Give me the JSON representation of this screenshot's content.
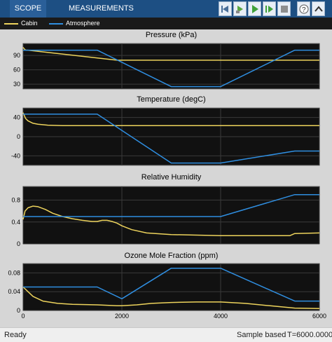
{
  "toolstrip": {
    "tabs": [
      {
        "label": "SCOPE"
      },
      {
        "label": "MEASUREMENTS"
      }
    ],
    "buttons": [
      "back-icon",
      "step-icon",
      "run-icon",
      "step-forward-icon",
      "stop-icon",
      "help-icon",
      "collapse-icon"
    ]
  },
  "legend": {
    "items": [
      {
        "label": "Cabin",
        "color": "#edd35c"
      },
      {
        "label": "Atmosphere",
        "color": "#2f8ee0"
      }
    ]
  },
  "status": {
    "left": "Ready",
    "mode": "Sample based",
    "time": "T=6000.0000"
  },
  "chart_data": [
    {
      "type": "line",
      "title": "Pressure (kPa)",
      "xlim": [
        0,
        6000
      ],
      "ylim": [
        20,
        115
      ],
      "yticks": [
        30,
        60,
        90
      ],
      "xtick_labels": [],
      "grid": true,
      "series": [
        {
          "name": "Cabin",
          "color": "#edd35c",
          "x": [
            0,
            20,
            40,
            60,
            100,
            1900,
            2000,
            6000
          ],
          "y": [
            107,
            104,
            102,
            101,
            101,
            80,
            80,
            80
          ]
        },
        {
          "name": "Atmosphere",
          "color": "#2f8ee0",
          "x": [
            0,
            1500,
            3000,
            4000,
            5500,
            6000
          ],
          "y": [
            101,
            101,
            25,
            25,
            101,
            101
          ]
        }
      ]
    },
    {
      "type": "line",
      "title": "Temperature (degC)",
      "xlim": [
        0,
        6000
      ],
      "ylim": [
        -60,
        60
      ],
      "yticks": [
        -40,
        0,
        40
      ],
      "xtick_labels": [],
      "grid": true,
      "series": [
        {
          "name": "Cabin",
          "color": "#edd35c",
          "x": [
            0,
            50,
            100,
            200,
            300,
            500,
            800,
            1200,
            6000
          ],
          "y": [
            50,
            38,
            33,
            28,
            26,
            24,
            23,
            23,
            23
          ]
        },
        {
          "name": "Atmosphere",
          "color": "#2f8ee0",
          "x": [
            0,
            1500,
            3000,
            4000,
            5500,
            6000
          ],
          "y": [
            47,
            47,
            -55,
            -55,
            -30,
            -30
          ]
        }
      ]
    },
    {
      "type": "line",
      "title": "Relative Humidity",
      "xlim": [
        0,
        6000
      ],
      "ylim": [
        0,
        1.05
      ],
      "yticks": [
        0,
        0.4,
        0.8
      ],
      "xtick_labels": [],
      "grid": true,
      "series": [
        {
          "name": "Cabin",
          "color": "#edd35c",
          "x": [
            0,
            40,
            100,
            200,
            300,
            450,
            600,
            800,
            1000,
            1200,
            1400,
            1500,
            1600,
            1700,
            1800,
            1900,
            2000,
            2200,
            2500,
            3000,
            4000,
            5000,
            5400,
            5500,
            6000
          ],
          "y": [
            0.45,
            0.6,
            0.66,
            0.69,
            0.68,
            0.63,
            0.56,
            0.5,
            0.46,
            0.43,
            0.41,
            0.41,
            0.43,
            0.43,
            0.41,
            0.38,
            0.33,
            0.26,
            0.2,
            0.17,
            0.15,
            0.15,
            0.15,
            0.19,
            0.2
          ]
        },
        {
          "name": "Atmosphere",
          "color": "#2f8ee0",
          "x": [
            0,
            4000,
            5500,
            6000
          ],
          "y": [
            0.5,
            0.5,
            0.9,
            0.9
          ]
        }
      ]
    },
    {
      "type": "line",
      "title": "Ozone Mole Fraction (ppm)",
      "xlim": [
        0,
        6000
      ],
      "ylim": [
        0,
        0.1
      ],
      "yticks": [
        0,
        0.04,
        0.08
      ],
      "xtick_labels": [
        "0",
        "2000",
        "4000",
        "6000"
      ],
      "grid": true,
      "series": [
        {
          "name": "Cabin",
          "color": "#edd35c",
          "x": [
            0,
            100,
            200,
            400,
            700,
            1000,
            1500,
            1900,
            2000,
            2300,
            2600,
            3000,
            3500,
            4000,
            4500,
            5000,
            5500,
            6000
          ],
          "y": [
            0.05,
            0.04,
            0.03,
            0.02,
            0.015,
            0.013,
            0.012,
            0.01,
            0.01,
            0.012,
            0.015,
            0.017,
            0.018,
            0.018,
            0.015,
            0.01,
            0.005,
            0.004
          ]
        },
        {
          "name": "Atmosphere",
          "color": "#2f8ee0",
          "x": [
            0,
            1500,
            2000,
            3000,
            4000,
            5500,
            6000
          ],
          "y": [
            0.05,
            0.05,
            0.025,
            0.09,
            0.09,
            0.02,
            0.02
          ]
        }
      ]
    }
  ]
}
